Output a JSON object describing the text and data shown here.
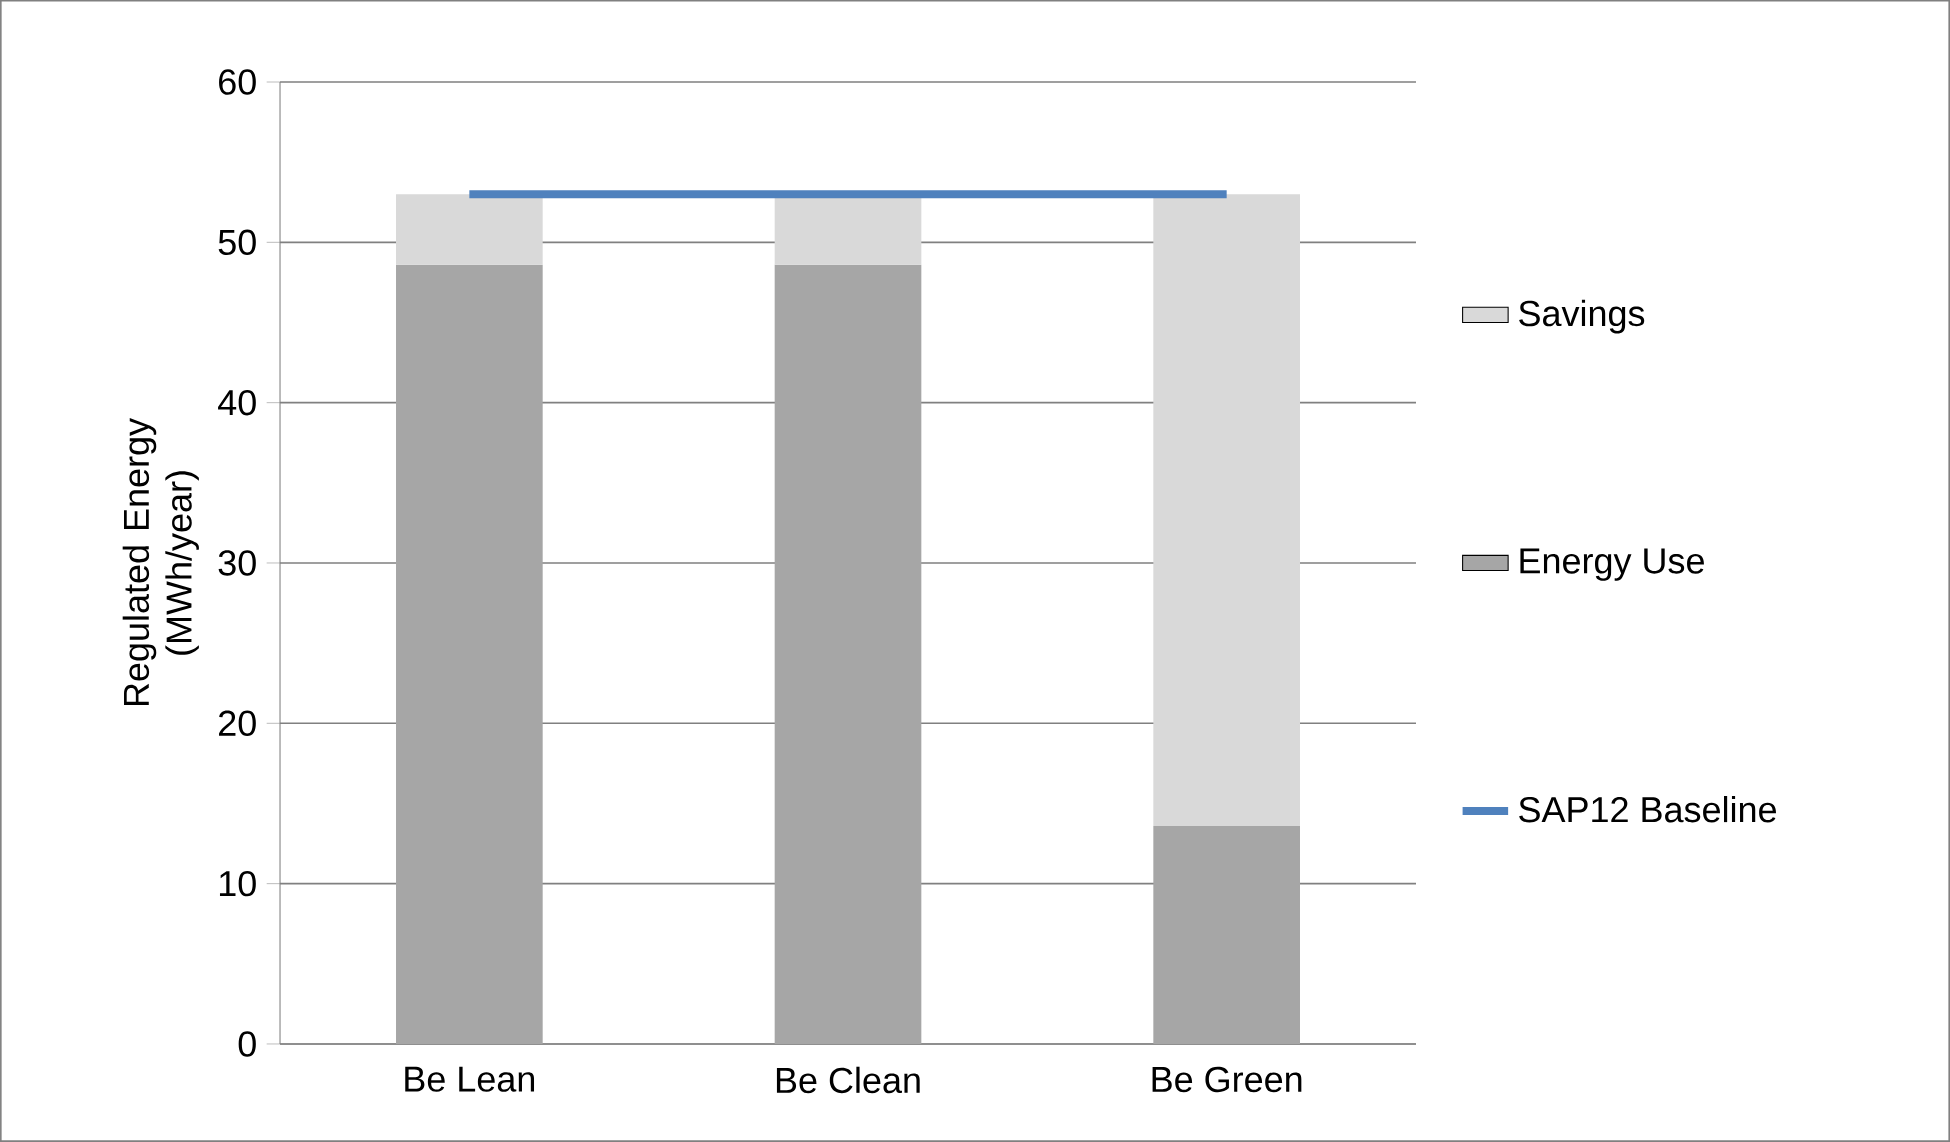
{
  "chart_data": {
    "type": "bar",
    "stacked": true,
    "ylabel": "Regulated Energy (MWh/year)",
    "categories": [
      "Be Lean",
      "Be Clean",
      "Be Green"
    ],
    "series": [
      {
        "name": "Energy Use",
        "color": "#a6a6a6",
        "values": [
          48.6,
          48.6,
          13.6
        ]
      },
      {
        "name": "Savings",
        "color": "#d9d9d9",
        "values": [
          4.4,
          4.4,
          39.4
        ]
      },
      {
        "name": "SAP12 Baseline",
        "type": "line",
        "color": "#4f81bd",
        "values": [
          53,
          53,
          53
        ]
      }
    ],
    "ylim": [
      0,
      60
    ],
    "yticks": [
      0,
      10,
      20,
      30,
      40,
      50,
      60
    ],
    "grid": "y",
    "legend": "right"
  }
}
